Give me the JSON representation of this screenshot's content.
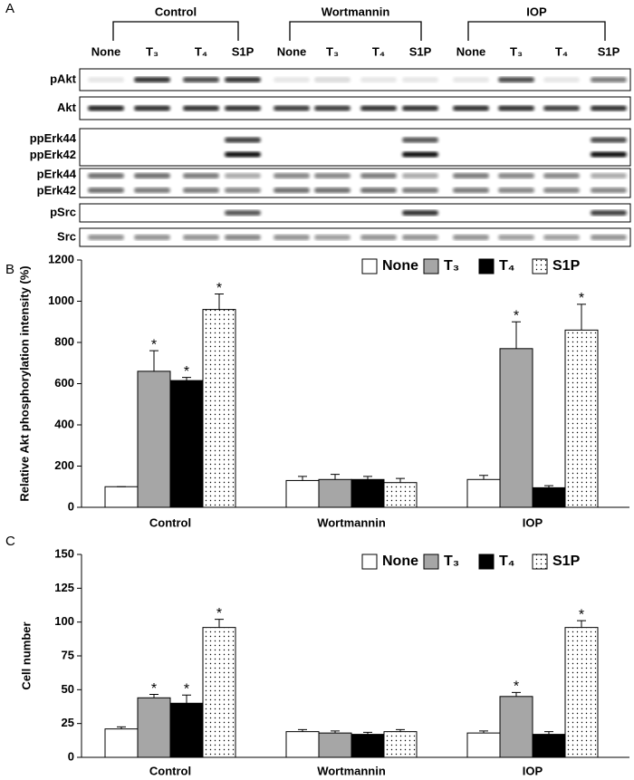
{
  "panels": [
    "A",
    "B",
    "C"
  ],
  "blot": {
    "groups": [
      "Control",
      "Wortmannin",
      "IOP"
    ],
    "lanes": [
      "None",
      "T₃",
      "T₄",
      "S1P",
      "None",
      "T₃",
      "T₄",
      "S1P",
      "None",
      "T₃",
      "T₄",
      "S1P"
    ],
    "rows": [
      [
        "pAkt"
      ],
      [
        "Akt"
      ],
      [
        "ppErk44",
        "ppErk42"
      ],
      [
        "pErk44",
        "pErk42"
      ],
      [
        "pSrc"
      ],
      [
        "Src"
      ]
    ]
  },
  "chart_data": [
    {
      "type": "bar",
      "ylabel": "Relative Akt phosphorylation intensity (%)",
      "categories": [
        "Control",
        "Wortmannin",
        "IOP"
      ],
      "series": [
        {
          "name": "None",
          "color": "#ffffff",
          "values": [
            100,
            130,
            135
          ],
          "errors": [
            0,
            20,
            20
          ],
          "labels": [
            null,
            null,
            null
          ]
        },
        {
          "name": "T₃",
          "color": "#a6a6a6",
          "values": [
            660,
            135,
            770
          ],
          "errors": [
            100,
            25,
            130
          ],
          "labels": [
            "*",
            null,
            "*"
          ]
        },
        {
          "name": "T₄",
          "color": "#000000",
          "values": [
            615,
            135,
            95
          ],
          "errors": [
            15,
            15,
            10
          ],
          "labels": [
            "*",
            null,
            null
          ]
        },
        {
          "name": "S1P",
          "color": "#ffffff",
          "pattern": "dots",
          "values": [
            960,
            120,
            860
          ],
          "errors": [
            75,
            20,
            125
          ],
          "labels": [
            "*",
            null,
            "*"
          ]
        }
      ],
      "ylim": [
        0,
        1200
      ],
      "yticks": [
        0,
        200,
        400,
        600,
        800,
        1000,
        1200
      ],
      "legend": "top-right"
    },
    {
      "type": "bar",
      "ylabel": "Cell number",
      "categories": [
        "Control",
        "Wortmannin",
        "IOP"
      ],
      "series": [
        {
          "name": "None",
          "color": "#ffffff",
          "values": [
            21,
            19,
            18
          ],
          "errors": [
            1.5,
            1.5,
            1.5
          ],
          "labels": [
            null,
            null,
            null
          ]
        },
        {
          "name": "T₃",
          "color": "#a6a6a6",
          "values": [
            44,
            18,
            45
          ],
          "errors": [
            2.5,
            1.5,
            3
          ],
          "labels": [
            "*",
            null,
            "*"
          ]
        },
        {
          "name": "T₄",
          "color": "#000000",
          "values": [
            40,
            17,
            17
          ],
          "errors": [
            6,
            1.5,
            2
          ],
          "labels": [
            "*",
            null,
            null
          ]
        },
        {
          "name": "S1P",
          "color": "#ffffff",
          "pattern": "dots",
          "values": [
            96,
            19,
            96
          ],
          "errors": [
            6,
            1.5,
            5
          ],
          "labels": [
            "*",
            null,
            "*"
          ]
        }
      ],
      "ylim": [
        0,
        150
      ],
      "yticks": [
        0,
        25,
        50,
        75,
        100,
        125,
        150
      ],
      "legend": "top-right"
    }
  ]
}
